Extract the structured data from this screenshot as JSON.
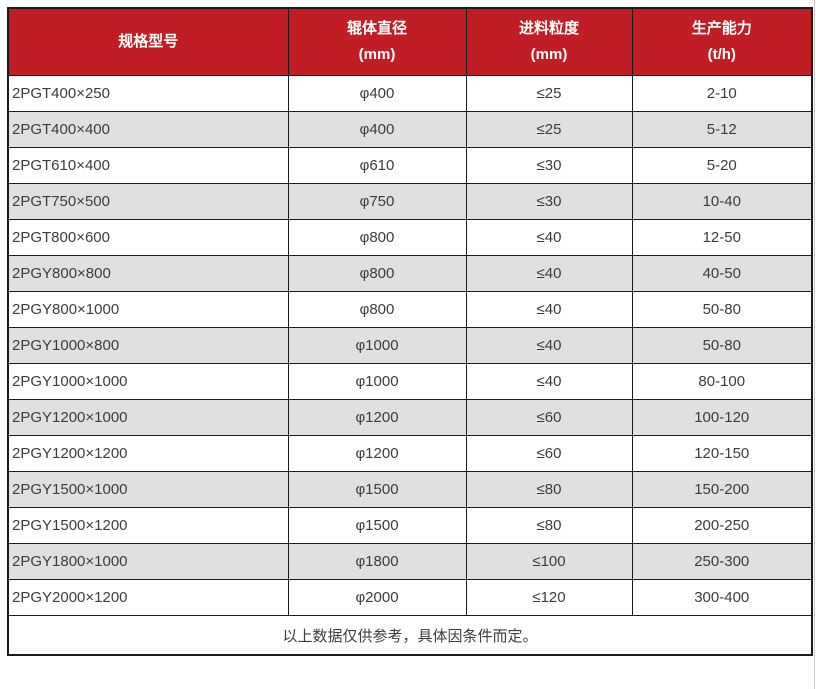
{
  "colors": {
    "header_bg": "#c01e24",
    "header_text": "#ffffff",
    "row_bg": "#ffffff",
    "row_alt_bg": "#e0e0e0",
    "border": "#1b1b1b",
    "cell_text": "#3c3c3c"
  },
  "table": {
    "headers": [
      {
        "line1": "规格型号",
        "line2": ""
      },
      {
        "line1": "辊体直径",
        "line2": "(mm)"
      },
      {
        "line1": "进料粒度",
        "line2": "(mm)"
      },
      {
        "line1": "生产能力",
        "line2": "(t/h)"
      }
    ]
  },
  "chart_data": {
    "type": "table",
    "columns": [
      "规格型号",
      "辊体直径 (mm)",
      "进料粒度 (mm)",
      "生产能力 (t/h)"
    ],
    "rows": [
      [
        "2PGT400×250",
        "φ400",
        "≤25",
        "2-10"
      ],
      [
        "2PGT400×400",
        "φ400",
        "≤25",
        "5-12"
      ],
      [
        "2PGT610×400",
        "φ610",
        "≤30",
        "5-20"
      ],
      [
        "2PGT750×500",
        "φ750",
        "≤30",
        "10-40"
      ],
      [
        "2PGT800×600",
        "φ800",
        "≤40",
        "12-50"
      ],
      [
        "2PGY800×800",
        "φ800",
        "≤40",
        "40-50"
      ],
      [
        "2PGY800×1000",
        "φ800",
        "≤40",
        "50-80"
      ],
      [
        "2PGY1000×800",
        "φ1000",
        "≤40",
        "50-80"
      ],
      [
        "2PGY1000×1000",
        "φ1000",
        "≤40",
        "80-100"
      ],
      [
        "2PGY1200×1000",
        "φ1200",
        "≤60",
        "100-120"
      ],
      [
        "2PGY1200×1200",
        "φ1200",
        "≤60",
        "120-150"
      ],
      [
        "2PGY1500×1000",
        "φ1500",
        "≤80",
        "150-200"
      ],
      [
        "2PGY1500×1200",
        "φ1500",
        "≤80",
        "200-250"
      ],
      [
        "2PGY1800×1000",
        "φ1800",
        "≤100",
        "250-300"
      ],
      [
        "2PGY2000×1200",
        "φ2000",
        "≤120",
        "300-400"
      ]
    ],
    "footnote": "以上数据仅供参考，具体因条件而定。"
  }
}
